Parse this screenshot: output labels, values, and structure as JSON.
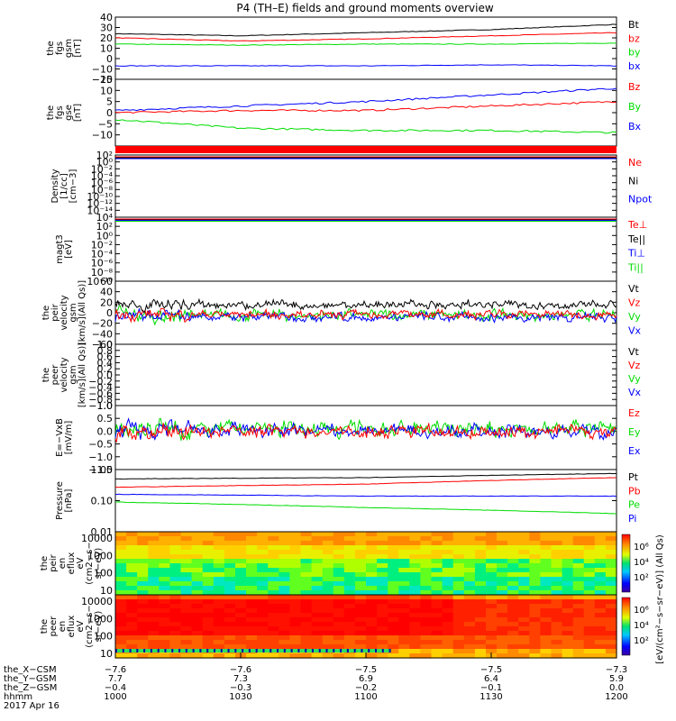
{
  "title": "P4 (TH–E) fields and ground moments overview",
  "colors": {
    "black": "#000000",
    "red": "#ff0000",
    "green": "#00dd00",
    "blue": "#0000ff"
  },
  "chart_data": [
    {
      "type": "line",
      "id": "fgs_gsm",
      "ylabel": [
        "the",
        "fgs",
        "gsm",
        "[nT]"
      ],
      "ylim": [
        -20,
        40
      ],
      "yticks": [
        "40",
        "30",
        "20",
        "10",
        "0",
        "−10",
        "−20"
      ],
      "yvals": [
        40,
        30,
        20,
        10,
        0,
        -10,
        -20
      ],
      "series": [
        {
          "name": "Bt",
          "color": "#000000",
          "x": [
            0,
            0.25,
            0.5,
            0.75,
            1
          ],
          "values": [
            24,
            22,
            25,
            28,
            33
          ]
        },
        {
          "name": "bz",
          "color": "#ff0000",
          "x": [
            0,
            0.25,
            0.5,
            0.75,
            1
          ],
          "values": [
            20,
            17,
            19,
            22,
            25
          ]
        },
        {
          "name": "by",
          "color": "#00dd00",
          "x": [
            0,
            0.25,
            0.5,
            0.75,
            1
          ],
          "values": [
            14,
            13,
            14,
            14,
            15
          ]
        },
        {
          "name": "bx",
          "color": "#0000ff",
          "x": [
            0,
            0.25,
            0.5,
            0.75,
            1
          ],
          "values": [
            -7,
            -7,
            -7,
            -6,
            -7
          ]
        }
      ]
    },
    {
      "type": "line",
      "id": "fgs_gse",
      "ylabel": [
        "the",
        "fgs",
        "gse",
        "[nT]"
      ],
      "ylim": [
        -15,
        15
      ],
      "yticks": [
        "15",
        "10",
        "5",
        "0",
        "−5",
        "−10"
      ],
      "yvals": [
        15,
        10,
        5,
        0,
        -5,
        -10
      ],
      "series": [
        {
          "name": "Bz",
          "color": "#ff0000",
          "x": [
            0,
            0.25,
            0.5,
            0.75,
            1
          ],
          "values": [
            0,
            1,
            1,
            3,
            5
          ]
        },
        {
          "name": "By",
          "color": "#00dd00",
          "x": [
            0,
            0.25,
            0.5,
            0.75,
            1
          ],
          "values": [
            -3,
            -7,
            -8,
            -8,
            -9
          ]
        },
        {
          "name": "Bx",
          "color": "#0000ff",
          "x": [
            0,
            0.25,
            0.5,
            0.75,
            1
          ],
          "values": [
            1,
            3,
            5,
            8,
            11
          ]
        }
      ]
    },
    {
      "type": "line",
      "id": "density",
      "ylabel": [
        "Density",
        "[1/cc]",
        "[cm−3]"
      ],
      "log": true,
      "ylim_exp": [
        -16,
        2
      ],
      "yticks": [
        "10²",
        "10⁰",
        "10⁻²",
        "10⁻⁴",
        "10⁻⁶",
        "10⁻⁸",
        "10⁻¹⁰",
        "10⁻¹²",
        "10⁻¹⁴"
      ],
      "yvals": [
        2,
        0,
        -2,
        -4,
        -6,
        -8,
        -10,
        -12,
        -14
      ],
      "series": [
        {
          "name": "Ne",
          "color": "#ff0000",
          "values": [
            0.6
          ]
        },
        {
          "name": "Ni",
          "color": "#000000",
          "values": [
            0.5
          ]
        },
        {
          "name": "Npot",
          "color": "#0000ff",
          "values": [
            0.4
          ]
        }
      ]
    },
    {
      "type": "line",
      "id": "temperature",
      "ylabel": [
        "magt3",
        "[eV]"
      ],
      "log": true,
      "ylim_exp": [
        -10,
        4
      ],
      "yticks": [
        "10⁴",
        "10²",
        "10⁰",
        "10⁻²",
        "10⁻⁴",
        "10⁻⁶",
        "10⁻⁸",
        "10⁻¹⁰"
      ],
      "yvals": [
        4,
        2,
        0,
        -2,
        -4,
        -6,
        -8,
        -10
      ],
      "series": [
        {
          "name": "Te⊥",
          "color": "#ff0000"
        },
        {
          "name": "Te||",
          "color": "#000000"
        },
        {
          "name": "Ti⊥",
          "color": "#0000ff"
        },
        {
          "name": "Ti||",
          "color": "#00dd00"
        }
      ]
    },
    {
      "type": "line",
      "id": "peir_velocity",
      "ylabel": [
        "the",
        "peir",
        "velocity",
        "gsm",
        "[km/s](All Qs)]"
      ],
      "ylim": [
        -60,
        60
      ],
      "yticks": [
        "60",
        "40",
        "20",
        "0",
        "−20",
        "−40",
        "−60"
      ],
      "yvals": [
        60,
        40,
        20,
        0,
        -20,
        -40,
        -60
      ],
      "series": [
        {
          "name": "Vt",
          "color": "#000000"
        },
        {
          "name": "Vz",
          "color": "#ff0000"
        },
        {
          "name": "Vy",
          "color": "#00dd00"
        },
        {
          "name": "Vx",
          "color": "#0000ff"
        }
      ]
    },
    {
      "type": "line",
      "id": "peer_velocity",
      "ylabel": [
        "the",
        "peer",
        "velocity",
        "gsm",
        "[km/s](All Qs)]"
      ],
      "ylim": [
        -1,
        1
      ],
      "yticks": [
        "1.0",
        "0.8",
        "0.6",
        "0.4",
        "0.2",
        "0.0",
        "−0.2",
        "−0.4",
        "−0.6",
        "−0.8",
        "−1.0"
      ],
      "yvals": [
        1,
        0.8,
        0.6,
        0.4,
        0.2,
        0,
        -0.2,
        -0.4,
        -0.6,
        -0.8,
        -1
      ],
      "series": [
        {
          "name": "Vt",
          "color": "#000000"
        },
        {
          "name": "Vz",
          "color": "#ff0000"
        },
        {
          "name": "Vy",
          "color": "#00dd00"
        },
        {
          "name": "Vx",
          "color": "#0000ff"
        }
      ]
    },
    {
      "type": "line",
      "id": "efield",
      "ylabel": [
        "E=−VxB",
        "[mV/m]"
      ],
      "ylim": [
        -1.5,
        1
      ],
      "yticks": [
        "1.0",
        "0.5",
        "0.0",
        "−0.5",
        "−1.0",
        "−1.5"
      ],
      "yvals": [
        1,
        0.5,
        0,
        -0.5,
        -1,
        -1.5
      ],
      "series": [
        {
          "name": "Ez",
          "color": "#ff0000"
        },
        {
          "name": "Ey",
          "color": "#00dd00"
        },
        {
          "name": "Ex",
          "color": "#0000ff"
        }
      ]
    },
    {
      "type": "line",
      "id": "pressure",
      "ylabel": [
        "Pressure",
        "[nPa]"
      ],
      "log": true,
      "ylim": [
        0.01,
        1
      ],
      "yticks": [
        "1.00",
        "0.10",
        "0.01"
      ],
      "yvals": [
        1,
        0.1,
        0.01
      ],
      "series": [
        {
          "name": "Pt",
          "color": "#000000",
          "x": [
            0,
            0.5,
            1
          ],
          "values": [
            0.5,
            0.55,
            0.75
          ]
        },
        {
          "name": "Pb",
          "color": "#ff0000",
          "x": [
            0,
            0.5,
            1
          ],
          "values": [
            0.27,
            0.34,
            0.55
          ]
        },
        {
          "name": "Pe",
          "color": "#00dd00",
          "x": [
            0,
            0.5,
            1
          ],
          "values": [
            0.09,
            0.06,
            0.038
          ]
        },
        {
          "name": "Pi",
          "color": "#0000ff",
          "x": [
            0,
            0.5,
            1
          ],
          "values": [
            0.16,
            0.14,
            0.14
          ]
        }
      ]
    },
    {
      "type": "heatmap",
      "id": "peir_en_eflux",
      "ylabel": [
        "the",
        "peir",
        "en",
        "eflux",
        "eV",
        "(cm2−s−",
        "sr−eV)"
      ],
      "yticks": [
        "10000",
        "1000",
        "100",
        "10"
      ],
      "yvals": [
        10000,
        1000,
        100,
        10
      ]
    },
    {
      "type": "heatmap",
      "id": "peer_en_eflux",
      "ylabel": [
        "the",
        "peer",
        "en",
        "eflux",
        "eV",
        "(cm2−s−",
        "sr−eV)"
      ],
      "yticks": [
        "10000",
        "1000",
        "100",
        "10"
      ],
      "yvals": [
        10000,
        1000,
        100,
        10
      ]
    }
  ],
  "colorbar": {
    "ticks": [
      "10⁶",
      "10⁴",
      "10²"
    ],
    "label": "[eV/(cm²−s−sr−eV)] (All Qs)"
  },
  "xaxis": {
    "rows": [
      {
        "label": "the_X−CSM",
        "values": [
          "−7.6",
          "−7.6",
          "−7.5",
          "−7.5",
          "−7.3"
        ]
      },
      {
        "label": "the_Y−GSM",
        "values": [
          "7.7",
          "7.3",
          "6.9",
          "6.4",
          "5.9"
        ]
      },
      {
        "label": "the_Z−GSM",
        "values": [
          "−0.4",
          "−0.3",
          "−0.2",
          "−0.1",
          "0.0"
        ]
      },
      {
        "label": "hhmm",
        "values": [
          "1000",
          "1030",
          "1100",
          "1130",
          "1200"
        ]
      }
    ],
    "date": "2017 Apr 16"
  }
}
